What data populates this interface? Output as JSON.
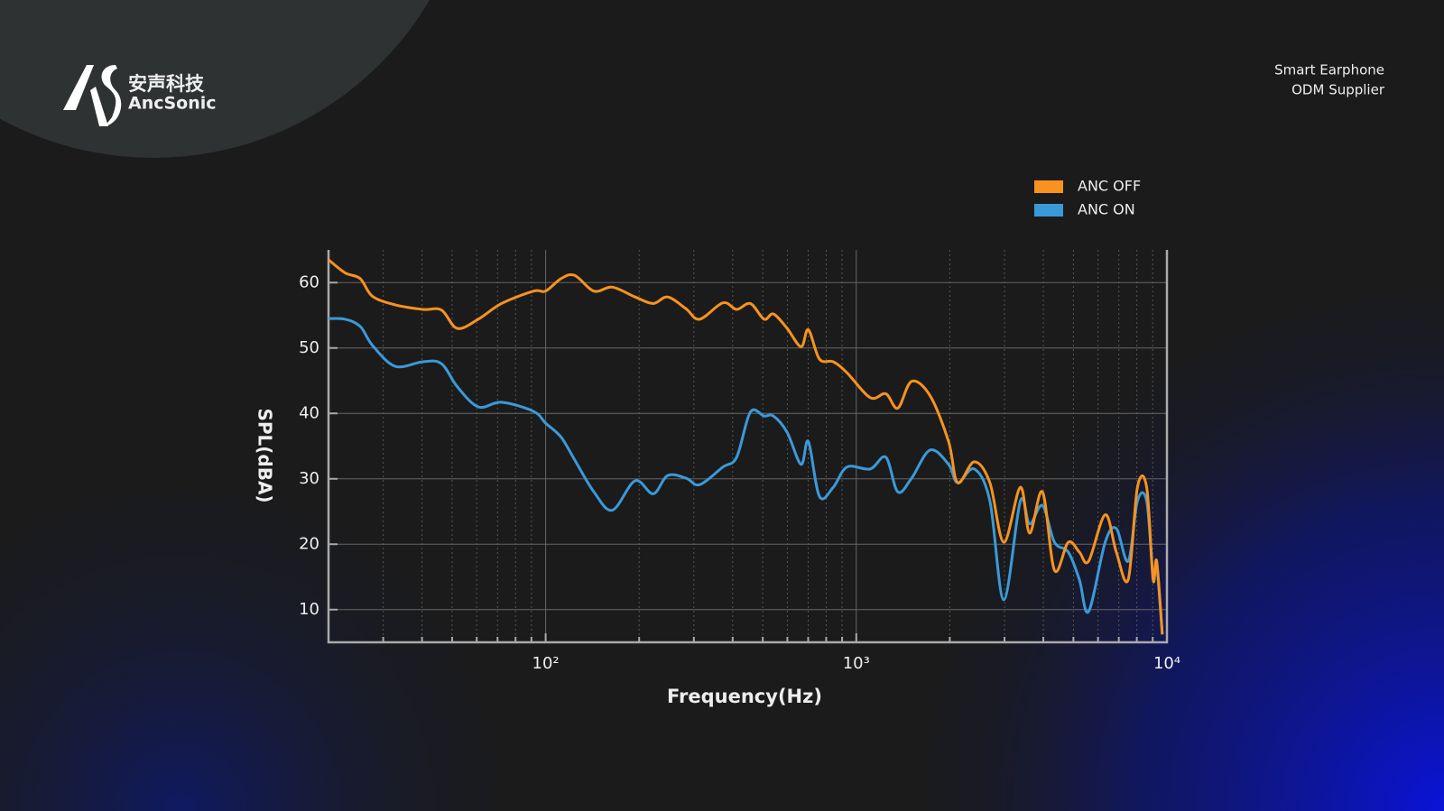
{
  "brand": {
    "name_cn": "安声科技",
    "name_en": "AncSonic",
    "tagline_1": "Smart Earphone",
    "tagline_2": "ODM Supplier"
  },
  "chart_data": {
    "type": "line",
    "x_label": "Frequency(Hz)",
    "y_label": "SPL(dBA)",
    "x_scale": "log",
    "grid": true,
    "legend": "upper right",
    "xlim": [
      20,
      10000
    ],
    "ylim": [
      5,
      65
    ],
    "xticks": [
      {
        "value": 100,
        "label": "10²"
      },
      {
        "value": 1000,
        "label": "10³"
      },
      {
        "value": 10000,
        "label": "10⁴"
      }
    ],
    "minor_xticks": [
      30,
      40,
      50,
      60,
      70,
      80,
      90,
      200,
      300,
      400,
      500,
      600,
      700,
      800,
      900,
      2000,
      3000,
      4000,
      5000,
      6000,
      7000,
      8000,
      9000
    ],
    "yticks": [
      10,
      20,
      30,
      40,
      50,
      60
    ],
    "x": [
      20,
      22.6,
      25.3,
      27.7,
      32.8,
      40.3,
      46.2,
      51.9,
      60.7,
      72.1,
      91.5,
      100,
      112,
      124,
      143,
      164,
      194,
      222,
      247,
      283,
      313,
      372,
      412,
      456,
      505,
      541,
      599,
      664,
      701,
      761,
      843,
      934,
      1109,
      1245,
      1360,
      1507,
      1728,
      1982,
      2120,
      2398,
      2692,
      2985,
      3375,
      3615,
      3975,
      4345,
      4812,
      5224,
      5596,
      6327,
      6871,
      7506,
      8037,
      8605,
      9021,
      9268,
      9664
    ],
    "series": [
      {
        "name": "ANC OFF",
        "color": "#f7931e",
        "values": [
          63.5,
          61.5,
          60.6,
          57.9,
          56.6,
          55.9,
          55.8,
          53,
          54.4,
          56.8,
          58.7,
          58.7,
          60.6,
          61.1,
          58.7,
          59.3,
          57.8,
          56.8,
          57.8,
          56,
          54.4,
          56.9,
          55.9,
          56.8,
          54.4,
          55.2,
          53,
          50.2,
          52.8,
          48.3,
          47.9,
          46.2,
          42.4,
          43,
          40.8,
          44.9,
          42.7,
          35.7,
          29.4,
          32.6,
          29.4,
          20.3,
          28.7,
          21.7,
          28,
          16,
          20.3,
          18.8,
          17.4,
          24.5,
          18.8,
          14.6,
          28.7,
          28.7,
          14.6,
          17.4,
          6.2
        ]
      },
      {
        "name": "ANC ON",
        "color": "#3a9ad9",
        "values": [
          54.5,
          54.4,
          53.3,
          50.4,
          47.2,
          47.9,
          47.6,
          44.1,
          41,
          41.7,
          40.3,
          38.5,
          36.4,
          32.9,
          28,
          25.2,
          29.7,
          27.7,
          30.5,
          30.1,
          29.1,
          31.8,
          33.3,
          40.2,
          39.6,
          39.6,
          37.1,
          32.2,
          35.7,
          27.3,
          28.7,
          31.8,
          31.5,
          33.3,
          28,
          30.1,
          34.4,
          32.2,
          29.4,
          31.5,
          26.6,
          11.5,
          26.6,
          23.1,
          25.9,
          20.3,
          18.8,
          14.6,
          9.7,
          20.3,
          22.4,
          17.4,
          26.6,
          26.6,
          15.3,
          16.7,
          6.2
        ]
      }
    ]
  }
}
